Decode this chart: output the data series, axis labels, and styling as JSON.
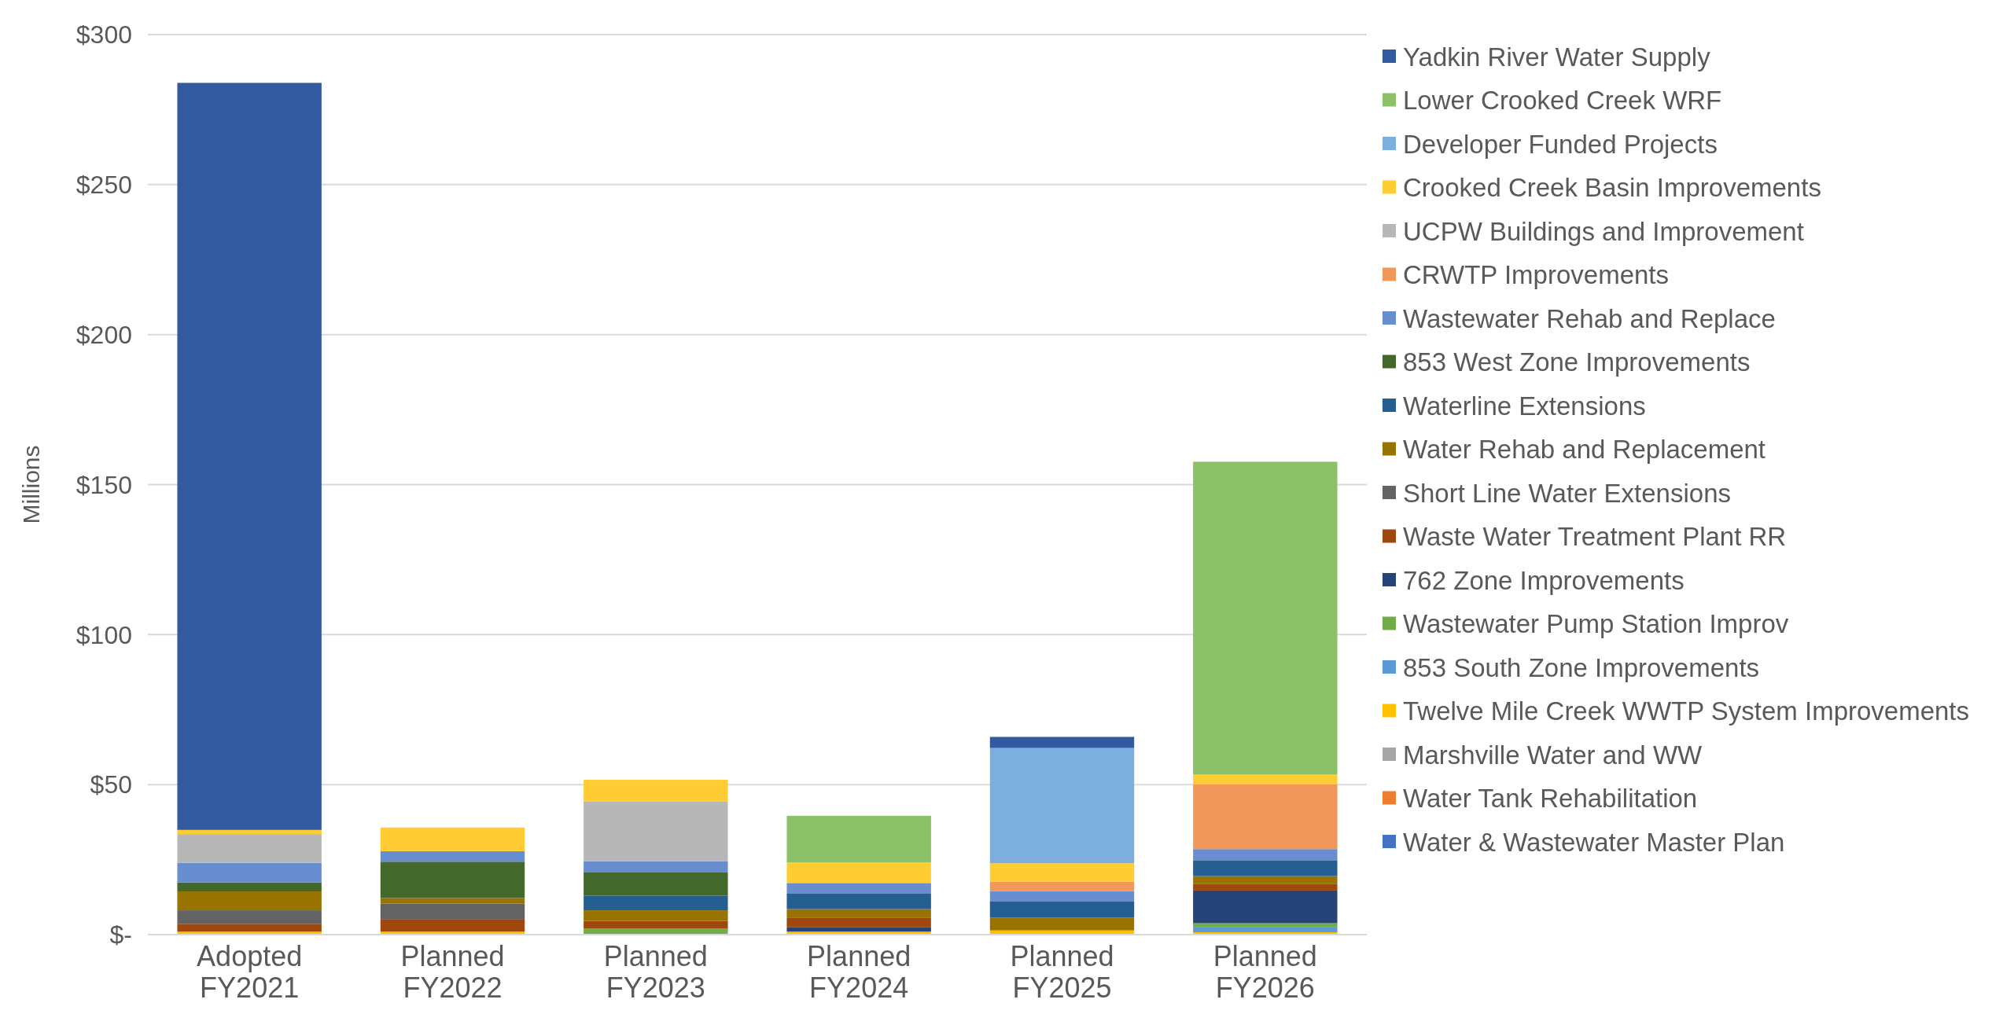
{
  "chart_data": {
    "type": "bar",
    "stacked": true,
    "ylabel": "Millions",
    "categories": [
      "Adopted FY2021",
      "Planned FY2022",
      "Planned FY2023",
      "Planned FY2024",
      "Planned FY2025",
      "Planned FY2026"
    ],
    "ylim": [
      0,
      300
    ],
    "yticks": [
      {
        "value": 0,
        "label": "$-"
      },
      {
        "value": 50,
        "label": "$50"
      },
      {
        "value": 100,
        "label": "$100"
      },
      {
        "value": 150,
        "label": "$150"
      },
      {
        "value": 200,
        "label": "$200"
      },
      {
        "value": 250,
        "label": "$250"
      },
      {
        "value": 300,
        "label": "$300"
      }
    ],
    "grid": "y",
    "legend": "right",
    "series": [
      {
        "name": "Water & Wastewater Master Plan",
        "color": "#4472c4",
        "values": [
          null,
          null,
          null,
          null,
          null,
          null
        ]
      },
      {
        "name": "Water Tank Rehabilitation",
        "color": "#ed7d31",
        "values": [
          null,
          null,
          null,
          null,
          null,
          null
        ]
      },
      {
        "name": "Marshville Water and WW",
        "color": "#a5a5a5",
        "values": [
          null,
          null,
          null,
          null,
          null,
          null
        ]
      },
      {
        "name": "Twelve Mile Creek WWTP System Improvements",
        "color": "#ffc000",
        "values": [
          1,
          1,
          null,
          1,
          1.4,
          0.8
        ]
      },
      {
        "name": "853 South Zone Improvements",
        "color": "#5b9bd5",
        "values": [
          null,
          null,
          null,
          null,
          null,
          1.6
        ]
      },
      {
        "name": "Wastewater Pump Station Improv",
        "color": "#70ad47",
        "values": [
          null,
          null,
          2.1,
          null,
          null,
          1.4
        ]
      },
      {
        "name": "762 Zone Improvements",
        "color": "#264478",
        "values": [
          null,
          null,
          null,
          1.4,
          null,
          10.9
        ]
      },
      {
        "name": "Waste Water Treatment Plant RR",
        "color": "#9e480e",
        "values": [
          2.6,
          4.2,
          2.5,
          3.3,
          null,
          2.1
        ]
      },
      {
        "name": "Short Line Water Extensions",
        "color": "#636363",
        "values": [
          4.5,
          5.1,
          null,
          null,
          null,
          null
        ]
      },
      {
        "name": "Water Rehab and Replacement",
        "color": "#997300",
        "values": [
          6.3,
          1.9,
          3.5,
          2.8,
          4.3,
          2.7
        ]
      },
      {
        "name": "Waterline Extensions",
        "color": "#255e91",
        "values": [
          null,
          null,
          4.9,
          5.3,
          5.3,
          5.3
        ]
      },
      {
        "name": "853 West Zone Improvements",
        "color": "#43682b",
        "values": [
          3,
          12.1,
          7.7,
          null,
          null,
          null
        ]
      },
      {
        "name": "Wastewater Rehab and Replace",
        "color": "#698ed0",
        "values": [
          6.5,
          3.5,
          3.7,
          3.4,
          3.5,
          3.7
        ]
      },
      {
        "name": "CRWTP Improvements",
        "color": "#f1975a",
        "values": [
          null,
          null,
          null,
          null,
          3.1,
          21.6
        ]
      },
      {
        "name": "UCPW Buildings and Improvement",
        "color": "#b7b7b7",
        "values": [
          9.6,
          null,
          19.9,
          null,
          null,
          null
        ]
      },
      {
        "name": "Crooked Creek Basin Improvements",
        "color": "#ffcd33",
        "values": [
          1.4,
          7.9,
          7.3,
          6.9,
          6.2,
          3.2
        ]
      },
      {
        "name": "Developer Funded Projects",
        "color": "#7cafdd",
        "values": [
          null,
          null,
          null,
          null,
          38.4,
          null
        ]
      },
      {
        "name": "Lower Crooked Creek WRF",
        "color": "#8cc168",
        "values": [
          null,
          null,
          null,
          15.5,
          null,
          104.3
        ]
      },
      {
        "name": "Yadkin River Water Supply",
        "color": "#335aa1",
        "values": [
          249,
          null,
          null,
          null,
          3.7,
          null
        ]
      }
    ]
  }
}
